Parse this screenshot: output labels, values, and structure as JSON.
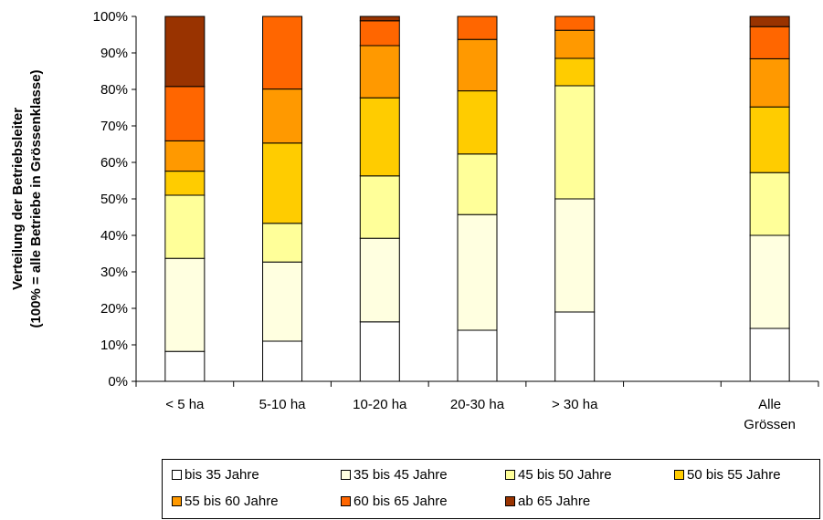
{
  "chart_data": {
    "type": "bar",
    "stacked": true,
    "title": "",
    "ylabel_line1": "Verteilung der Betriebsleiter",
    "ylabel_line2": "(100% = alle Betriebe in Grössenklasse)",
    "xlabel": "",
    "ylim": [
      0,
      100
    ],
    "yticks": [
      "0%",
      "10%",
      "20%",
      "30%",
      "40%",
      "50%",
      "60%",
      "70%",
      "80%",
      "90%",
      "100%"
    ],
    "categories": [
      "< 5 ha",
      "5-10 ha",
      "10-20 ha",
      "20-30 ha",
      "> 30 ha",
      "",
      "Alle Grössen"
    ],
    "category_label_lines": [
      [
        "< 5 ha"
      ],
      [
        "5-10 ha"
      ],
      [
        "10-20 ha"
      ],
      [
        "20-30 ha"
      ],
      [
        "> 30 ha"
      ],
      [
        ""
      ],
      [
        "Alle",
        "Grössen"
      ]
    ],
    "series": [
      {
        "name": "bis 35 Jahre",
        "color": "#ffffff",
        "values": [
          8.2,
          11,
          16.3,
          14,
          19,
          null,
          14.5
        ]
      },
      {
        "name": "35 bis 45 Jahre",
        "color": "#ffffe0",
        "values": [
          25.5,
          21.7,
          22.9,
          31.7,
          31,
          null,
          25.5
        ]
      },
      {
        "name": "45 bis 50 Jahre",
        "color": "#ffff99",
        "values": [
          17.3,
          10.6,
          17.1,
          16.6,
          31,
          null,
          17.2
        ]
      },
      {
        "name": "50 bis 55 Jahre",
        "color": "#ffcc00",
        "values": [
          6.6,
          22,
          21.4,
          17.3,
          7.5,
          null,
          18
        ]
      },
      {
        "name": "55 bis 60 Jahre",
        "color": "#ff9900",
        "values": [
          8.3,
          14.8,
          14.3,
          14.1,
          7.7,
          null,
          13.2
        ]
      },
      {
        "name": "60 bis 65 Jahre",
        "color": "#ff6600",
        "values": [
          14.9,
          19.9,
          6.8,
          6.3,
          3.8,
          null,
          8.8
        ]
      },
      {
        "name": "ab 65 Jahre",
        "color": "#993300",
        "values": [
          19.2,
          0,
          1.2,
          0,
          0,
          null,
          2.8
        ]
      }
    ],
    "legend_position": "bottom",
    "grid": false
  }
}
